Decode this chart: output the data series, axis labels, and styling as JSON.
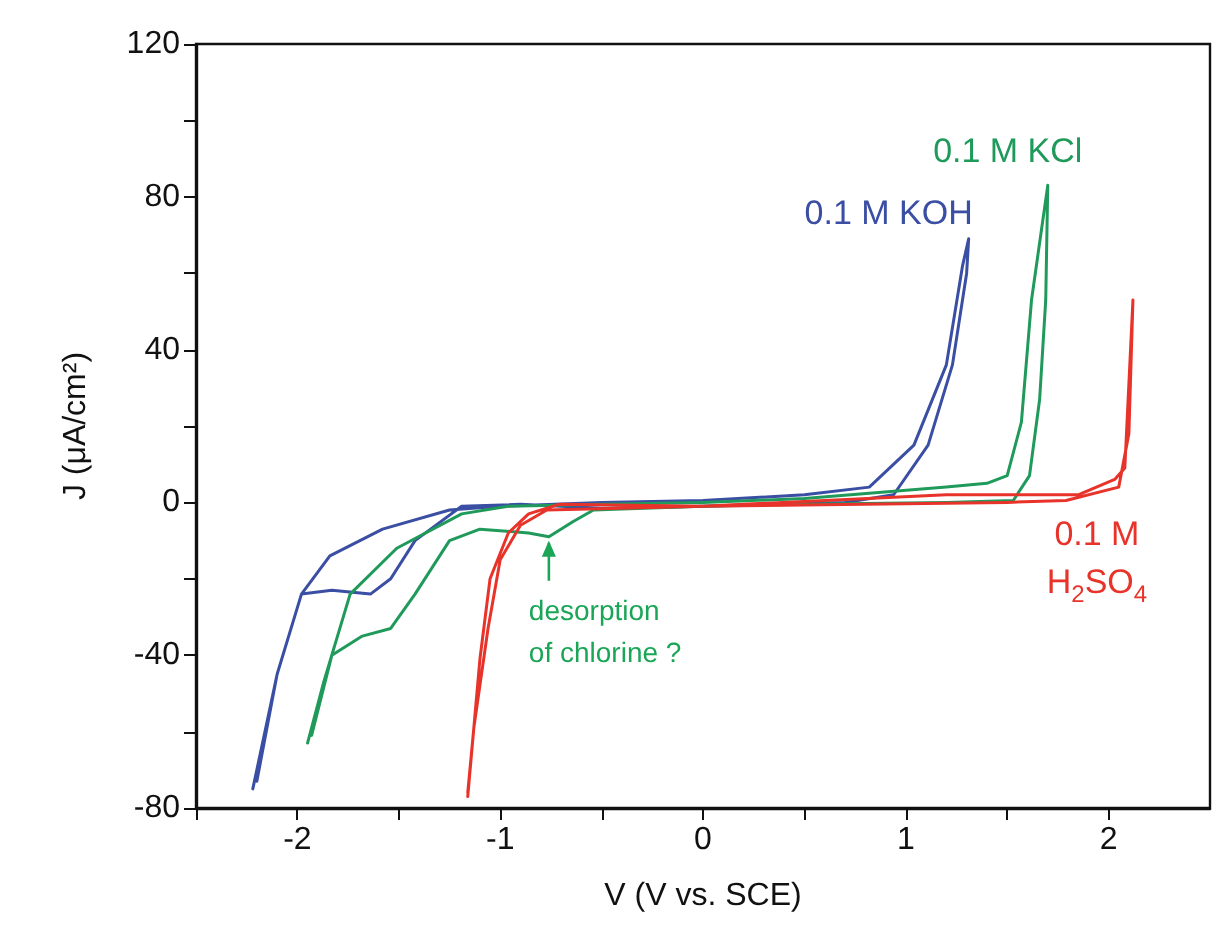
{
  "chart_data": {
    "type": "line",
    "xlabel": "V (V vs. SCE)",
    "ylabel": "J (μA/cm²)",
    "xlim": [
      -2.5,
      2.5
    ],
    "ylim": [
      -80,
      120
    ],
    "xticks": [
      {
        "value": -2.5,
        "label": null
      },
      -2,
      {
        "value": -1.5,
        "label": null
      },
      -1,
      {
        "value": -0.5,
        "label": null
      },
      0,
      {
        "value": 0.5,
        "label": null
      },
      1,
      {
        "value": 1.5,
        "label": null
      },
      2
    ],
    "yticks": [
      -80,
      {
        "value": -60,
        "label": null
      },
      -40,
      {
        "value": -20,
        "label": null
      },
      0,
      {
        "value": 20,
        "label": null
      },
      40,
      {
        "value": 60,
        "label": null
      },
      80,
      {
        "value": 100,
        "label": null
      },
      120
    ],
    "grid": false,
    "legend": false,
    "marker": "none",
    "line_style": "solid",
    "annotations": [
      {
        "text": "desorption\nof chlorine ?",
        "x": -0.76,
        "y": -9
      }
    ],
    "series": [
      {
        "name": "0.1 M KOH",
        "color": "#3a4ea3",
        "x": [
          -2.22,
          -2.1,
          -1.98,
          -1.84,
          -1.58,
          -1.25,
          -1.0,
          -0.5,
          0,
          0.5,
          0.82,
          1.04,
          1.2,
          1.28,
          1.31,
          1.3,
          1.23,
          1.11,
          0.94,
          0.7,
          0.3,
          0,
          -0.5,
          -0.9,
          -1.19,
          -1.42,
          -1.54,
          -1.64,
          -1.83,
          -1.98,
          -2.1,
          -2.2
        ],
        "values": [
          -75,
          -45,
          -24,
          -14,
          -7,
          -2,
          -1,
          0,
          0.5,
          2,
          4,
          15,
          36,
          62,
          69,
          60,
          36,
          15,
          2,
          0,
          -0.5,
          -1,
          -1.5,
          -0.5,
          -1,
          -10,
          -20,
          -24,
          -23,
          -24,
          -45,
          -73
        ]
      },
      {
        "name": "0.1 M KCl",
        "color": "#1f9a5a",
        "x": [
          -1.95,
          -1.87,
          -1.74,
          -1.51,
          -1.19,
          -0.96,
          -0.5,
          0,
          0.5,
          1.2,
          1.4,
          1.5,
          1.57,
          1.62,
          1.7,
          1.69,
          1.66,
          1.61,
          1.53,
          1.2,
          0.5,
          0,
          -0.54,
          -0.64,
          -0.76,
          -0.86,
          -1.1,
          -1.25,
          -1.42,
          -1.54,
          -1.68,
          -1.83,
          -1.93
        ],
        "values": [
          -63,
          -47,
          -24,
          -12,
          -3,
          -1,
          -0.5,
          0,
          1,
          4,
          5,
          7,
          21,
          53,
          83,
          53,
          27,
          7,
          0.5,
          0,
          -0.5,
          -1,
          -2,
          -5,
          -9,
          -8,
          -7,
          -10,
          -24,
          -33,
          -35,
          -40,
          -61
        ]
      },
      {
        "name": "0.1 M\nH$_{2}$SO$_{4}$",
        "color": "#e8332a",
        "x": [
          -1.16,
          -1.1,
          -1.05,
          -0.96,
          -0.86,
          -0.71,
          0,
          1.2,
          1.85,
          2.03,
          2.08,
          2.12,
          2.1,
          2.05,
          1.79,
          1.5,
          0,
          -0.77,
          -0.9,
          -1.0,
          -1.06,
          -1.13,
          -1.16
        ],
        "values": [
          -77,
          -41,
          -20,
          -8,
          -3,
          -0.5,
          -1,
          2,
          2,
          6,
          9,
          53,
          18,
          4,
          0.5,
          0,
          -1,
          -2,
          -6,
          -15,
          -33,
          -59,
          -76
        ]
      }
    ]
  }
}
